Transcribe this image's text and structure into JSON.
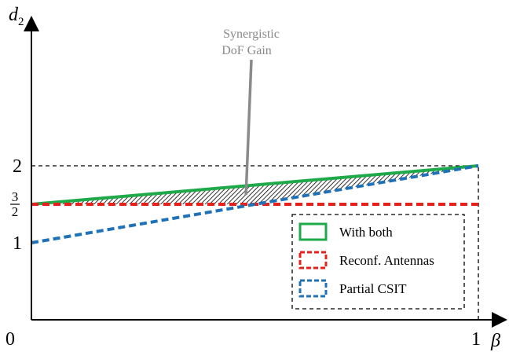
{
  "chart_data": {
    "type": "line",
    "xlabel": "β",
    "ylabel": {
      "base": "d",
      "sub": "2"
    },
    "xlim": [
      0,
      1
    ],
    "ylim": [
      0,
      2.3
    ],
    "x_ticks": [
      {
        "value": 0,
        "label": "0"
      },
      {
        "value": 1,
        "label": "1"
      }
    ],
    "y_ticks": [
      {
        "value": 1,
        "label": "1"
      },
      {
        "value": 1.5,
        "label": "",
        "frac_num": "3",
        "frac_den": "2"
      },
      {
        "value": 2,
        "label": "2"
      }
    ],
    "series": [
      {
        "name": "With both",
        "style": "solid",
        "color": "#1faa4a",
        "x": [
          0,
          1
        ],
        "y": [
          1.5,
          2
        ]
      },
      {
        "name": "Reconf. Antennas",
        "style": "dashed",
        "color": "#e8201c",
        "x": [
          0,
          1
        ],
        "y": [
          1.5,
          1.5
        ]
      },
      {
        "name": "Partial CSIT",
        "style": "dashed",
        "color": "#1f72b8",
        "x": [
          0,
          1
        ],
        "y": [
          1,
          2
        ]
      }
    ],
    "guides": [
      {
        "orientation": "horizontal",
        "value": 2,
        "x_range": [
          0,
          1
        ]
      },
      {
        "orientation": "vertical",
        "value": 1,
        "y_range": [
          0,
          2
        ]
      }
    ],
    "shaded_region": {
      "between": [
        "With both",
        "max(Partial CSIT, Reconf. Antennas)"
      ],
      "pattern": "hatched"
    },
    "annotation": {
      "lines": [
        "Synergistic",
        "DoF Gain"
      ],
      "color": "#8a8a8a",
      "points_to": {
        "x": 0.48,
        "y": 1.62
      }
    },
    "legend": {
      "placement": "bottom-right"
    },
    "grid": false
  }
}
